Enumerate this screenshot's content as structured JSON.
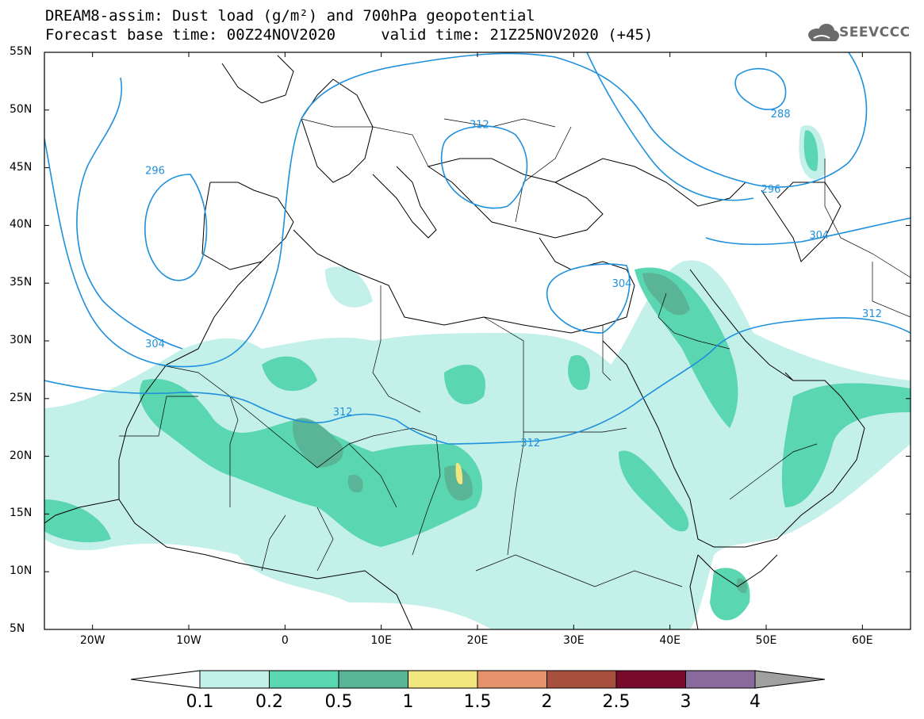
{
  "title": {
    "line1": "DREAM8-assim: Dust load (g/m²) and 700hPa geopotential",
    "line2": "Forecast base time: 00Z24NOV2020     valid time: 21Z25NOV2020 (+45)"
  },
  "logo": {
    "text": "SEEVCCC",
    "icon": "cloud-icon",
    "color": "#6b6b6b"
  },
  "map": {
    "lat_range": [
      5,
      55
    ],
    "lon_range": [
      -25,
      65
    ],
    "lat_ticks": [
      "5N",
      "10N",
      "15N",
      "20N",
      "25N",
      "30N",
      "35N",
      "40N",
      "45N",
      "50N",
      "55N"
    ],
    "lon_ticks": [
      "20W",
      "10W",
      "0",
      "10E",
      "20E",
      "30E",
      "40E",
      "50E",
      "60E"
    ],
    "contour_color": "#1e90dc",
    "contour_labels": [
      {
        "text": "296",
        "lon": -13.5,
        "lat": 44.8
      },
      {
        "text": "304",
        "lon": -13.5,
        "lat": 29.8
      },
      {
        "text": "312",
        "lon": 20.2,
        "lat": 48.8
      },
      {
        "text": "312",
        "lon": 6,
        "lat": 23.9
      },
      {
        "text": "312",
        "lon": 25.5,
        "lat": 21.2
      },
      {
        "text": "304",
        "lon": 35,
        "lat": 35.0
      },
      {
        "text": "304",
        "lon": 55.5,
        "lat": 39.2
      },
      {
        "text": "296",
        "lon": 50.5,
        "lat": 43.2
      },
      {
        "text": "288",
        "lon": 51.5,
        "lat": 49.7
      },
      {
        "text": "312",
        "lon": 61,
        "lat": 32.4
      }
    ]
  },
  "colorbar": {
    "labels": [
      "0.1",
      "0.2",
      "0.5",
      "1",
      "1.5",
      "2",
      "2.5",
      "3",
      "4"
    ],
    "colors": [
      "#c4f0ea",
      "#5ad6b1",
      "#5ab496",
      "#f2e77e",
      "#e6926a",
      "#a8503e",
      "#780a2e",
      "#8a6a9c"
    ],
    "over_color": "#a0a0a0",
    "under_color": "#ffffff"
  }
}
